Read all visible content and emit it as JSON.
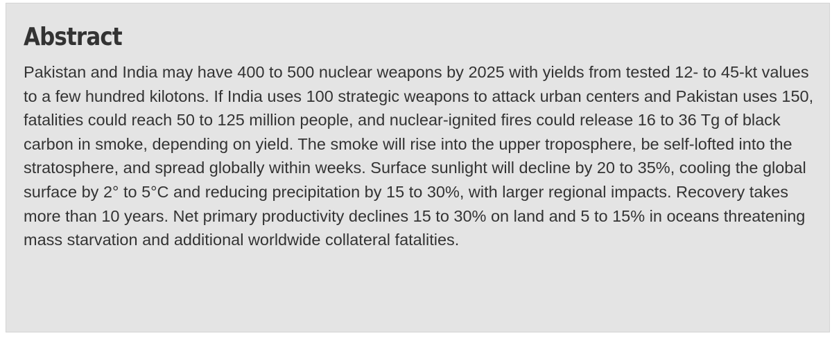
{
  "abstract": {
    "title": "Abstract",
    "body": "Pakistan and India may have 400 to 500 nuclear weapons by 2025 with yields from tested 12- to 45-kt values to a few hundred kilotons. If India uses 100 strategic weapons to attack urban centers and Pakistan uses 150, fatalities could reach 50 to 125 million people, and nuclear-ignited fires could release 16 to 36 Tg of black carbon in smoke, depending on yield. The smoke will rise into the upper troposphere, be self-lofted into the stratosphere, and spread globally within weeks. Surface sunlight will decline by 20 to 35%, cooling the global surface by 2° to 5°C and reducing precipitation by 15 to 30%, with larger regional impacts. Recovery takes more than 10 years. Net primary productivity declines 15 to 30% on land and 5 to 15% in oceans threatening mass starvation and additional worldwide collateral fatalities."
  }
}
